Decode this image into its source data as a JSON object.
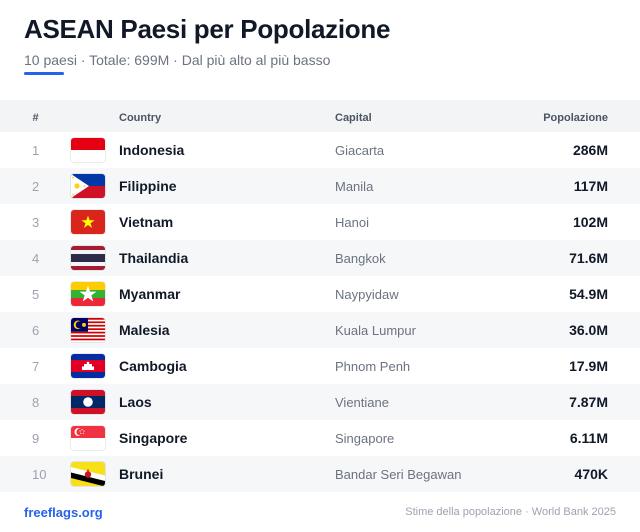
{
  "header": {
    "title": "ASEAN Paesi per Popolazione",
    "subtitle": "10 paesi · Totale: 699M · Dal più alto al più basso"
  },
  "table": {
    "columns": {
      "num": "#",
      "country": "Country",
      "capital": "Capital",
      "population": "Popolazione"
    },
    "rows": [
      {
        "rank": "1",
        "flag": "indonesia-flag-icon",
        "country": "Indonesia",
        "capital": "Giacarta",
        "population": "286M"
      },
      {
        "rank": "2",
        "flag": "philippines-flag-icon",
        "country": "Filippine",
        "capital": "Manila",
        "population": "117M"
      },
      {
        "rank": "3",
        "flag": "vietnam-flag-icon",
        "country": "Vietnam",
        "capital": "Hanoi",
        "population": "102M"
      },
      {
        "rank": "4",
        "flag": "thailand-flag-icon",
        "country": "Thailandia",
        "capital": "Bangkok",
        "population": "71.6M"
      },
      {
        "rank": "5",
        "flag": "myanmar-flag-icon",
        "country": "Myanmar",
        "capital": "Naypyidaw",
        "population": "54.9M"
      },
      {
        "rank": "6",
        "flag": "malaysia-flag-icon",
        "country": "Malesia",
        "capital": "Kuala Lumpur",
        "population": "36.0M"
      },
      {
        "rank": "7",
        "flag": "cambodia-flag-icon",
        "country": "Cambogia",
        "capital": "Phnom Penh",
        "population": "17.9M"
      },
      {
        "rank": "8",
        "flag": "laos-flag-icon",
        "country": "Laos",
        "capital": "Vientiane",
        "population": "7.87M"
      },
      {
        "rank": "9",
        "flag": "singapore-flag-icon",
        "country": "Singapore",
        "capital": "Singapore",
        "population": "6.11M"
      },
      {
        "rank": "10",
        "flag": "brunei-flag-icon",
        "country": "Brunei",
        "capital": "Bandar Seri Begawan",
        "population": "470K"
      }
    ]
  },
  "footer": {
    "link": "freeflags.org",
    "source": "Stime della popolazione · World Bank 2025"
  },
  "colors": {
    "accent": "#2563eb",
    "title": "#111827",
    "muted": "#6b7280",
    "header_row_bg": "#f3f4f6",
    "stripe_bg": "#f6f7f9"
  }
}
